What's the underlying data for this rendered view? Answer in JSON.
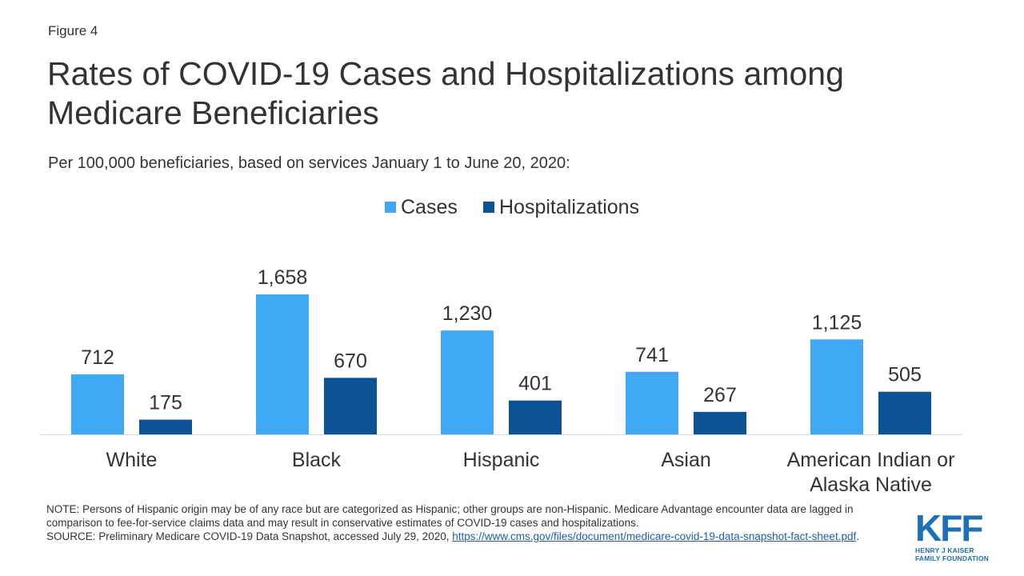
{
  "figure_label": "Figure 4",
  "title": "Rates of COVID-19 Cases and Hospitalizations among Medicare Beneficiaries",
  "subtitle": "Per 100,000 beneficiaries, based on services January 1 to June 20, 2020:",
  "chart_data": {
    "type": "bar",
    "categories": [
      "White",
      "Black",
      "Hispanic",
      "Asian",
      "American Indian or Alaska Native"
    ],
    "category_lines": [
      [
        "White"
      ],
      [
        "Black"
      ],
      [
        "Hispanic"
      ],
      [
        "Asian"
      ],
      [
        "American Indian or",
        "Alaska Native"
      ]
    ],
    "series": [
      {
        "name": "Cases",
        "values": [
          712,
          1658,
          1230,
          741,
          1125
        ],
        "labels": [
          "712",
          "1,658",
          "1,230",
          "741",
          "1,125"
        ],
        "color": "#3fa9f5"
      },
      {
        "name": "Hospitalizations",
        "values": [
          175,
          670,
          401,
          267,
          505
        ],
        "labels": [
          "175",
          "670",
          "401",
          "267",
          "505"
        ],
        "color": "#0b5394"
      }
    ],
    "legend_position": "top-center",
    "grid": false
  },
  "footer": {
    "note": "NOTE: Persons of Hispanic origin may be of any race but are categorized as Hispanic; other groups are non-Hispanic. Medicare Advantage  encounter data are lagged in comparison to fee-for-service claims data and may result in conservative estimates of COVID-19 cases and hospitalizations.",
    "source_prefix": "SOURCE: Preliminary Medicare  COVID-19 Data Snapshot, accessed July 29, 2020, ",
    "source_link": "https://www.cms.gov/files/document/medicare-covid-19-data-snapshot-fact-sheet.pdf",
    "source_suffix": "."
  },
  "logo": {
    "mark": "KFF",
    "line1": "HENRY J KAISER",
    "line2": "FAMILY FOUNDATION",
    "color": "#1d6fb8"
  }
}
